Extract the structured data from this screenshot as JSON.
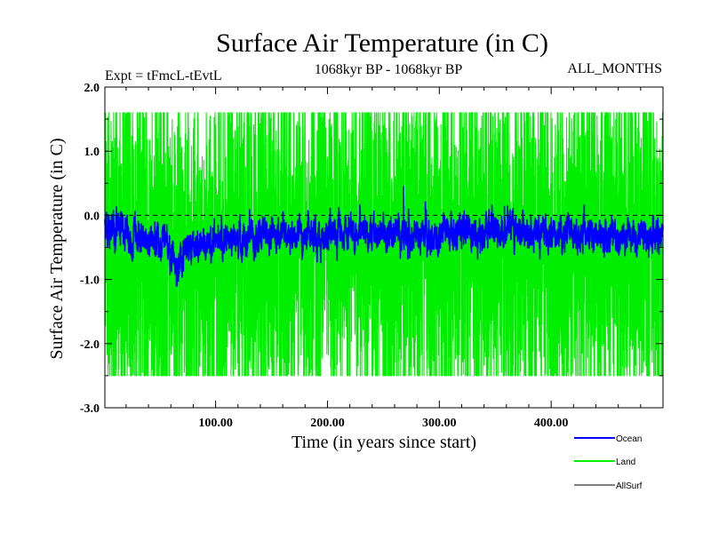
{
  "chart_data": {
    "type": "line",
    "title": "Surface Air Temperature (in C)",
    "subtitle_left": "Expt = tFmcL-tEvtL",
    "subtitle_center": "1068kyr BP - 1068kyr BP",
    "subtitle_right": "ALL_MONTHS",
    "xlabel": "Time (in years since start)",
    "ylabel": "Surface Air Temperature (in C)",
    "xlim": [
      1,
      500
    ],
    "ylim": [
      -3.0,
      2.0
    ],
    "xticks": [
      {
        "value": 100,
        "label": "100.00"
      },
      {
        "value": 200,
        "label": "200.00"
      },
      {
        "value": 300,
        "label": "300.00"
      },
      {
        "value": 400,
        "label": "400.00"
      }
    ],
    "yticks": [
      {
        "value": 2.0,
        "label": "2.0"
      },
      {
        "value": 1.0,
        "label": "1.0"
      },
      {
        "value": 0.0,
        "label": "0.0"
      },
      {
        "value": -1.0,
        "label": "-1.0"
      },
      {
        "value": -2.0,
        "label": "-2.0"
      },
      {
        "value": -3.0,
        "label": "-3.0"
      }
    ],
    "reference_line": 0.0,
    "series": [
      {
        "name": "Land",
        "color": "#00ee00",
        "n_points": 6000,
        "mean": -0.5,
        "std": 0.55,
        "min": -2.5,
        "max": 1.6,
        "anchors": [
          {
            "x": 1,
            "y": -0.4
          },
          {
            "x": 30,
            "y": -0.6
          },
          {
            "x": 50,
            "y": -0.6
          },
          {
            "x": 65,
            "y": -0.9
          },
          {
            "x": 90,
            "y": -0.7
          },
          {
            "x": 120,
            "y": -0.5
          },
          {
            "x": 150,
            "y": -0.5
          },
          {
            "x": 200,
            "y": -0.45
          },
          {
            "x": 250,
            "y": -0.45
          },
          {
            "x": 300,
            "y": -0.45
          },
          {
            "x": 350,
            "y": -0.45
          },
          {
            "x": 400,
            "y": -0.45
          },
          {
            "x": 450,
            "y": -0.45
          },
          {
            "x": 500,
            "y": -0.4
          }
        ],
        "extremes": [
          {
            "x": 268,
            "y": 1.6
          },
          {
            "x": 338,
            "y": 1.55
          },
          {
            "x": 10,
            "y": 1.05
          },
          {
            "x": 66,
            "y": -2.5
          },
          {
            "x": 410,
            "y": -2.3
          },
          {
            "x": 72,
            "y": -2.45
          }
        ]
      },
      {
        "name": "Ocean",
        "color": "#0000ff",
        "n_points": 6000,
        "mean": -0.3,
        "std": 0.12,
        "min": -1.1,
        "max": 0.5,
        "anchors": [
          {
            "x": 1,
            "y": -0.2
          },
          {
            "x": 30,
            "y": -0.35
          },
          {
            "x": 55,
            "y": -0.45
          },
          {
            "x": 65,
            "y": -0.75
          },
          {
            "x": 80,
            "y": -0.5
          },
          {
            "x": 100,
            "y": -0.4
          },
          {
            "x": 150,
            "y": -0.3
          },
          {
            "x": 200,
            "y": -0.28
          },
          {
            "x": 250,
            "y": -0.27
          },
          {
            "x": 300,
            "y": -0.27
          },
          {
            "x": 350,
            "y": -0.25
          },
          {
            "x": 400,
            "y": -0.27
          },
          {
            "x": 450,
            "y": -0.3
          },
          {
            "x": 500,
            "y": -0.3
          }
        ],
        "extremes": [
          {
            "x": 268,
            "y": 0.45
          },
          {
            "x": 65,
            "y": -1.1
          }
        ]
      },
      {
        "name": "AllSurf",
        "color": "#000000",
        "values": []
      }
    ],
    "legend": [
      "Ocean",
      "Land",
      "AllSurf"
    ],
    "legend_position": "bottom-right"
  }
}
